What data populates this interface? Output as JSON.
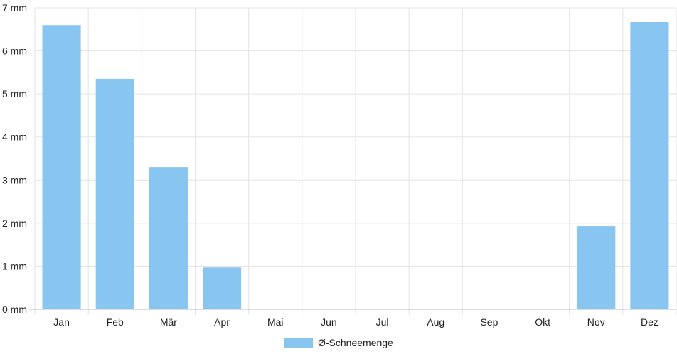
{
  "chart_data": {
    "type": "bar",
    "categories": [
      "Jan",
      "Feb",
      "Mär",
      "Apr",
      "Mai",
      "Jun",
      "Jul",
      "Aug",
      "Sep",
      "Okt",
      "Nov",
      "Dez"
    ],
    "series": [
      {
        "name": "Ø-Schneemenge",
        "values": [
          6.6,
          5.35,
          3.3,
          0.97,
          0.01,
          0,
          0,
          0,
          0,
          0.01,
          1.93,
          6.67
        ]
      }
    ],
    "y_unit": "mm",
    "ylim": [
      0,
      7
    ],
    "yticks": [
      0,
      1,
      2,
      3,
      4,
      5,
      6,
      7
    ],
    "grid": true,
    "legend_position": "bottom",
    "colors": {
      "bar": "#89C5F1",
      "grid": "#e3e3e3",
      "axis": "#bdbdbd",
      "text": "#222222"
    }
  }
}
